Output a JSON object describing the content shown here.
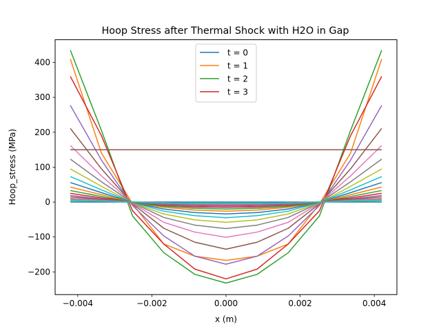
{
  "chart_data": {
    "type": "line",
    "title": "Hoop Stress after Thermal Shock with H2O in Gap",
    "xlabel": "x (m)",
    "ylabel": "Hoop_stress (MPa)",
    "xlim": [
      -0.00461,
      0.00461
    ],
    "ylim": [
      -265,
      465
    ],
    "xticks": [
      -0.004,
      -0.002,
      0.0,
      0.002,
      0.004
    ],
    "xtick_labels": [
      "−0.004",
      "−0.002",
      "0.000",
      "0.002",
      "0.004"
    ],
    "yticks": [
      -200,
      -100,
      0,
      100,
      200,
      300,
      400
    ],
    "ytick_labels": [
      "−200",
      "−100",
      "0",
      "100",
      "200",
      "300",
      "400"
    ],
    "grid": false,
    "legend_position": "top-center",
    "x": [
      -0.0042,
      -0.00336,
      -0.00252,
      -0.00168,
      -0.00084,
      0.0,
      0.00084,
      0.00168,
      0.00252,
      0.00336,
      0.0042
    ],
    "series": [
      {
        "name": "t = 0",
        "color": "#1f77b4",
        "values": [
          0,
          0,
          0,
          0,
          0,
          0,
          0,
          0,
          0,
          0,
          0
        ]
      },
      {
        "name": "t = 1",
        "color": "#ff7f0e",
        "values": [
          410,
          140,
          -5,
          -120,
          -155,
          -167,
          -155,
          -120,
          -5,
          140,
          410
        ]
      },
      {
        "name": "t = 2",
        "color": "#2ca02c",
        "values": [
          435,
          205,
          -40,
          -145,
          -207,
          -232,
          -207,
          -145,
          -40,
          205,
          435
        ]
      },
      {
        "name": "t = 3",
        "color": "#d62728",
        "values": [
          360,
          190,
          -25,
          -120,
          -192,
          -220,
          -192,
          -120,
          -25,
          190,
          360
        ]
      },
      {
        "color": "#9467bd",
        "values": [
          277,
          120,
          -10,
          -97,
          -155,
          -178,
          -155,
          -97,
          -10,
          120,
          277
        ]
      },
      {
        "color": "#8c564b",
        "values": [
          211,
          95,
          -5,
          -75,
          -115,
          -135,
          -115,
          -75,
          -5,
          95,
          211
        ]
      },
      {
        "color": "#e377c2",
        "values": [
          162,
          75,
          -3,
          -58,
          -86,
          -101,
          -86,
          -58,
          -3,
          75,
          162
        ]
      },
      {
        "color": "#7f7f7f",
        "values": [
          123,
          58,
          -2,
          -44,
          -66,
          -76,
          -66,
          -44,
          -2,
          58,
          123
        ]
      },
      {
        "color": "#bcbd22",
        "values": [
          95,
          45,
          -2,
          -34,
          -51,
          -58,
          -51,
          -34,
          -2,
          45,
          95
        ]
      },
      {
        "color": "#17becf",
        "values": [
          73,
          35,
          -1,
          -26,
          -39,
          -45,
          -39,
          -26,
          -1,
          35,
          73
        ]
      },
      {
        "color": "#1f77b4",
        "values": [
          56,
          27,
          -1,
          -20,
          -30,
          -34,
          -30,
          -20,
          -1,
          27,
          56
        ]
      },
      {
        "color": "#ff7f0e",
        "values": [
          43,
          21,
          -1,
          -15,
          -23,
          -26,
          -23,
          -15,
          -1,
          21,
          43
        ]
      },
      {
        "color": "#2ca02c",
        "values": [
          33,
          16,
          -1,
          -12,
          -18,
          -20,
          -18,
          -12,
          -1,
          16,
          33
        ]
      },
      {
        "color": "#d62728",
        "values": [
          25,
          12,
          0,
          -9,
          -14,
          -15,
          -14,
          -9,
          0,
          12,
          25
        ]
      },
      {
        "color": "#9467bd",
        "values": [
          19,
          9,
          0,
          -7,
          -11,
          -12,
          -11,
          -7,
          0,
          9,
          19
        ]
      },
      {
        "color": "#8c564b",
        "values": [
          15,
          7,
          0,
          -5,
          -8,
          -9,
          -8,
          -5,
          0,
          7,
          15
        ]
      },
      {
        "color": "#e377c2",
        "values": [
          11,
          5,
          0,
          -4,
          -6,
          -7,
          -6,
          -4,
          0,
          5,
          11
        ]
      },
      {
        "color": "#7f7f7f",
        "values": [
          8,
          4,
          0,
          -3,
          -5,
          -5,
          -5,
          -3,
          0,
          4,
          8
        ]
      },
      {
        "color": "#bcbd22",
        "values": [
          6,
          3,
          0,
          -2,
          -4,
          -4,
          -4,
          -2,
          0,
          3,
          6
        ]
      },
      {
        "color": "#17becf",
        "values": [
          4,
          2,
          0,
          -2,
          -3,
          -3,
          -3,
          -2,
          0,
          2,
          4
        ]
      },
      {
        "color": "#8c564b",
        "values": [
          150,
          150,
          150,
          150,
          150,
          150,
          150,
          150,
          150,
          150,
          150
        ]
      }
    ]
  }
}
